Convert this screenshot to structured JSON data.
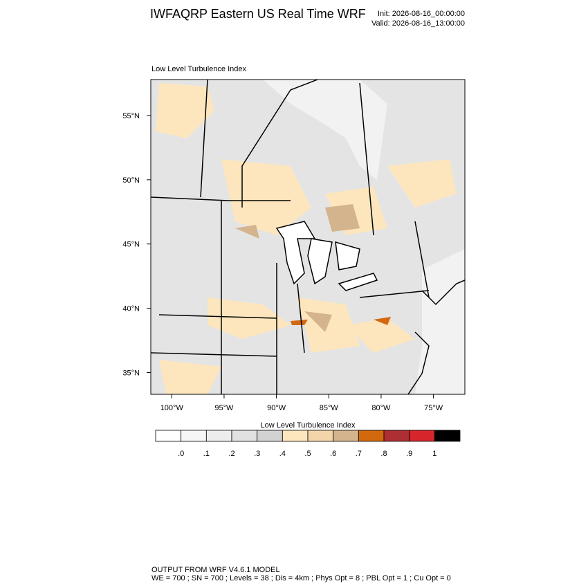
{
  "header": {
    "title": "IWFAQRP Eastern US Real Time WRF",
    "init": "Init: 2026-08-16_00:00:00",
    "valid": "Valid: 2026-08-16_13:00:00"
  },
  "map": {
    "title": "Low Level Turbulence Index",
    "lonlim": [
      -102,
      -72
    ],
    "latlim": [
      33.3,
      57.8
    ],
    "lonticks": [
      {
        "value": -100,
        "label": "100°W"
      },
      {
        "value": -95,
        "label": "95°W"
      },
      {
        "value": -90,
        "label": "90°W"
      },
      {
        "value": -85,
        "label": "85°W"
      },
      {
        "value": -80,
        "label": "80°W"
      },
      {
        "value": -75,
        "label": "75°W"
      }
    ],
    "latticks": [
      {
        "value": 35,
        "label": "35°N"
      },
      {
        "value": 40,
        "label": "40°N"
      },
      {
        "value": 45,
        "label": "45°N"
      },
      {
        "value": 50,
        "label": "50°N"
      },
      {
        "value": 55,
        "label": "55°N"
      }
    ]
  },
  "colorbar": {
    "title": "Low Level Turbulence Index",
    "colors": [
      "#ffffff",
      "#f6f6f6",
      "#ededed",
      "#e1e1e1",
      "#d2d2d2",
      "#fde6bd",
      "#f3d5a9",
      "#d4b48c",
      "#d2690f",
      "#ad2f33",
      "#d6262b",
      "#000000"
    ],
    "levels": [
      {
        "value": 0,
        "label": ".0"
      },
      {
        "value": 0.1,
        "label": ".1"
      },
      {
        "value": 0.2,
        "label": ".2"
      },
      {
        "value": 0.3,
        "label": ".3"
      },
      {
        "value": 0.4,
        "label": ".4"
      },
      {
        "value": 0.5,
        "label": ".5"
      },
      {
        "value": 0.6,
        "label": ".6"
      },
      {
        "value": 0.7,
        "label": ".7"
      },
      {
        "value": 0.8,
        "label": ".8"
      },
      {
        "value": 0.9,
        "label": ".9"
      },
      1
    ]
  },
  "footer": {
    "line1": "OUTPUT FROM WRF V4.6.1 MODEL",
    "line2": "WE = 700 ; SN = 700 ; Levels = 38 ; Dis = 4km ; Phys Opt = 8 ; PBL Opt = 1 ; Cu Opt = 0"
  }
}
